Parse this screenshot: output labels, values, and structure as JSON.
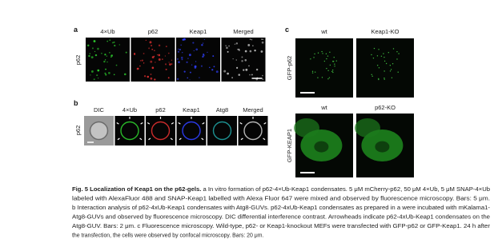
{
  "panel_a": {
    "label": "a",
    "columns": [
      "4×Ub",
      "p62",
      "Keap1",
      "Merged"
    ],
    "row_label": "p62"
  },
  "panel_b": {
    "label": "b",
    "columns": [
      "DIC",
      "4×Ub",
      "p62",
      "Keap1",
      "Atg8",
      "Merged"
    ],
    "row_label": "p62"
  },
  "panel_c": {
    "label": "c",
    "rows": [
      {
        "label": "GFP-p62",
        "columns": [
          "wt",
          "Keap1-KO"
        ]
      },
      {
        "label": "GFP-KEAP1",
        "columns": [
          "wt",
          "p62-KO"
        ]
      }
    ]
  },
  "caption": {
    "title": "Fig. 5 Localization of Keap1 on the p62-gels.",
    "lines": [
      " a In vitro formation of p62-4×Ub-Keap1 condensates. 5 μM mCherry-p62, 50 μM 4×Ub, 5 μM SNAP-4×Ub",
      "labeled with AlexaFluor 488 and SNAP-Keap1 labelled with Alexa Fluor 647 were mixed and observed by fluorescence microscopy. Bars: 5 μm.",
      "b Interaction analysis of p62-4xUb-Keap1 condensates with Atg8-GUVs. p62-4xUb-Keap1 condensates as prepared in a were incubated with mKalama1-",
      "Atg8-GUVs and observed by fluorescence microscopy. DIC differential interference contrast. Arrowheads indicate p62-4xUb-Keap1 condensates on the",
      "Atg8-GUV. Bars: 2 μm. c Fluorescence microscopy. Wild-type, p62- or Keap1-knockout MEFs were transfected with GFP-p62 or GFP-Keap1. 24 h after",
      "the transfection, the cells were observed by confocal microscopy. Bars: 20 μm."
    ]
  }
}
